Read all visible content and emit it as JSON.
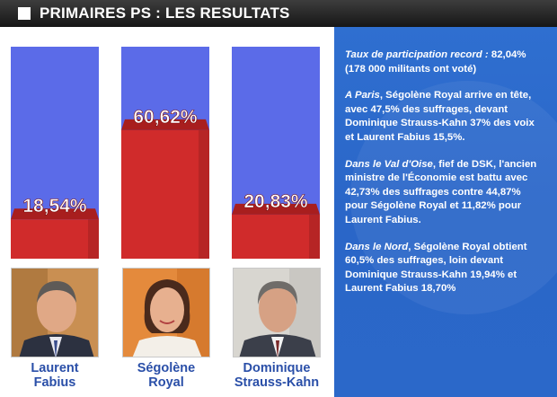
{
  "header": {
    "title": "PRIMAIRES PS : LES RESULTATS"
  },
  "chart_data": {
    "type": "bar",
    "categories": [
      "Laurent Fabius",
      "Ségolène Royal",
      "Dominique Strauss-Kahn"
    ],
    "values": [
      18.54,
      60.62,
      20.83
    ],
    "value_labels": [
      "18,54%",
      "60,62%",
      "20,83%"
    ],
    "ylim": [
      0,
      100
    ],
    "title": "PRIMAIRES PS : LES RESULTATS",
    "xlabel": "",
    "ylabel": "",
    "colors": {
      "filled": "#d02b2b",
      "empty": "#5b6be8"
    }
  },
  "candidates": [
    {
      "first": "Laurent",
      "last": "Fabius"
    },
    {
      "first": "Ségolène",
      "last": "Royal"
    },
    {
      "first": "Dominique",
      "last": "Strauss-Kahn"
    }
  ],
  "info": [
    {
      "em": "Taux de participation record :",
      "text": " 82,04% (178 000 militants ont voté)"
    },
    {
      "em": "A Paris",
      "text": ", Ségolène Royal arrive en tête, avec 47,5% des suffrages, devant Dominique Strauss-Kahn 37% des voix et Laurent Fabius 15,5%."
    },
    {
      "em": "Dans le Val d'Oise",
      "text": ", fief de DSK, l'ancien ministre de l'Économie est battu avec 42,73% des suffrages contre 44,87% pour Ségolène Royal et 11,82% pour Laurent Fabius."
    },
    {
      "em": "Dans le Nord",
      "text": ", Ségolène Royal obtient 60,5% des suffrages, loin devant Dominique Strauss-Kahn 19,94% et Laurent Fabius 18,70%"
    }
  ]
}
